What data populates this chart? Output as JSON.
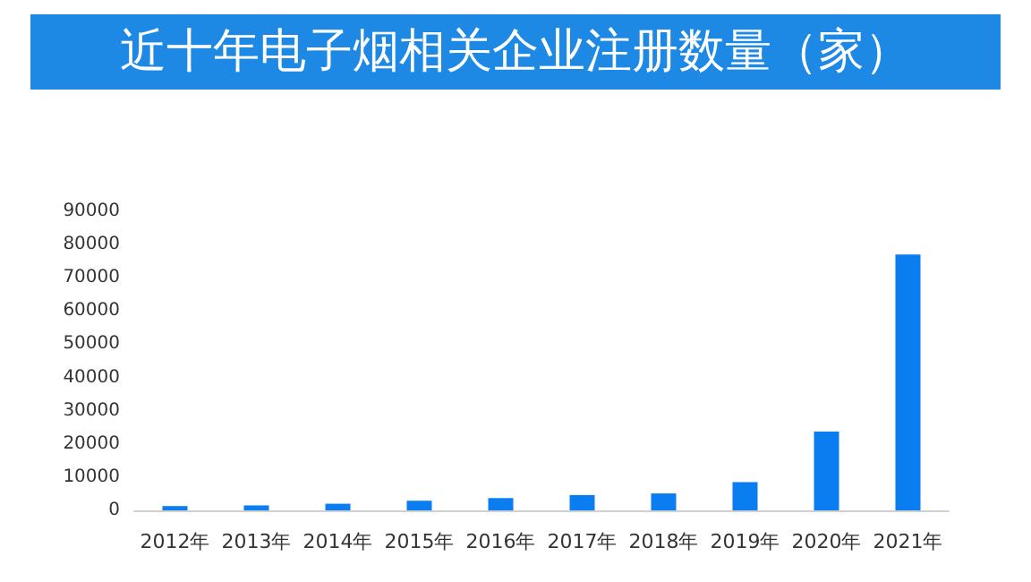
{
  "chart_data": {
    "type": "bar",
    "title": "近十年电子烟相关企业注册数量（家）",
    "categories": [
      "2012年",
      "2013年",
      "2014年",
      "2015年",
      "2016年",
      "2017年",
      "2018年",
      "2019年",
      "2020年",
      "2021年"
    ],
    "values": [
      1300,
      1500,
      2000,
      2900,
      3700,
      4600,
      5100,
      8500,
      23700,
      77000
    ],
    "color": "#0a7ef0",
    "ylim": [
      0,
      90000
    ],
    "yticks": [
      0,
      10000,
      20000,
      30000,
      40000,
      50000,
      60000,
      70000,
      80000,
      90000
    ],
    "grid": false
  }
}
